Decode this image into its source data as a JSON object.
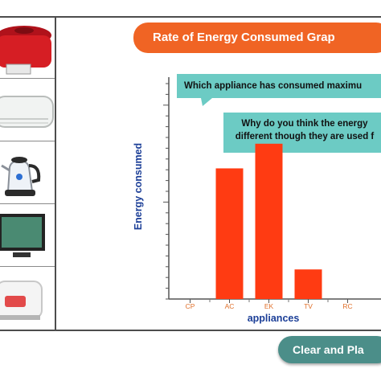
{
  "title": "Rate of Energy Consumed Grap",
  "questions": {
    "q1": "Which appliance has consumed maximu",
    "q2_line1": "Why do you think the energy",
    "q2_line2": "different though they are used f"
  },
  "button_label": "Clear and Pla",
  "appliance_icons": [
    "rice-cooker-icon",
    "air-conditioner-icon",
    "electric-kettle-icon",
    "television-icon",
    "rice-cooker-small-icon"
  ],
  "colors": {
    "title": "#f06424",
    "bubble": "#6ccbc4",
    "bar": "#ff3b12",
    "button": "#4b8e89",
    "axis_label": "#1b3e97"
  },
  "chart_data": {
    "type": "bar",
    "categories": [
      "CP",
      "AC",
      "EK",
      "TV",
      "RC"
    ],
    "values": [
      0,
      5.3,
      6.3,
      1.2,
      0
    ],
    "xlabel": "appliances",
    "ylabel": "Energy consumed",
    "ylim": [
      0,
      9
    ],
    "grid": false
  }
}
